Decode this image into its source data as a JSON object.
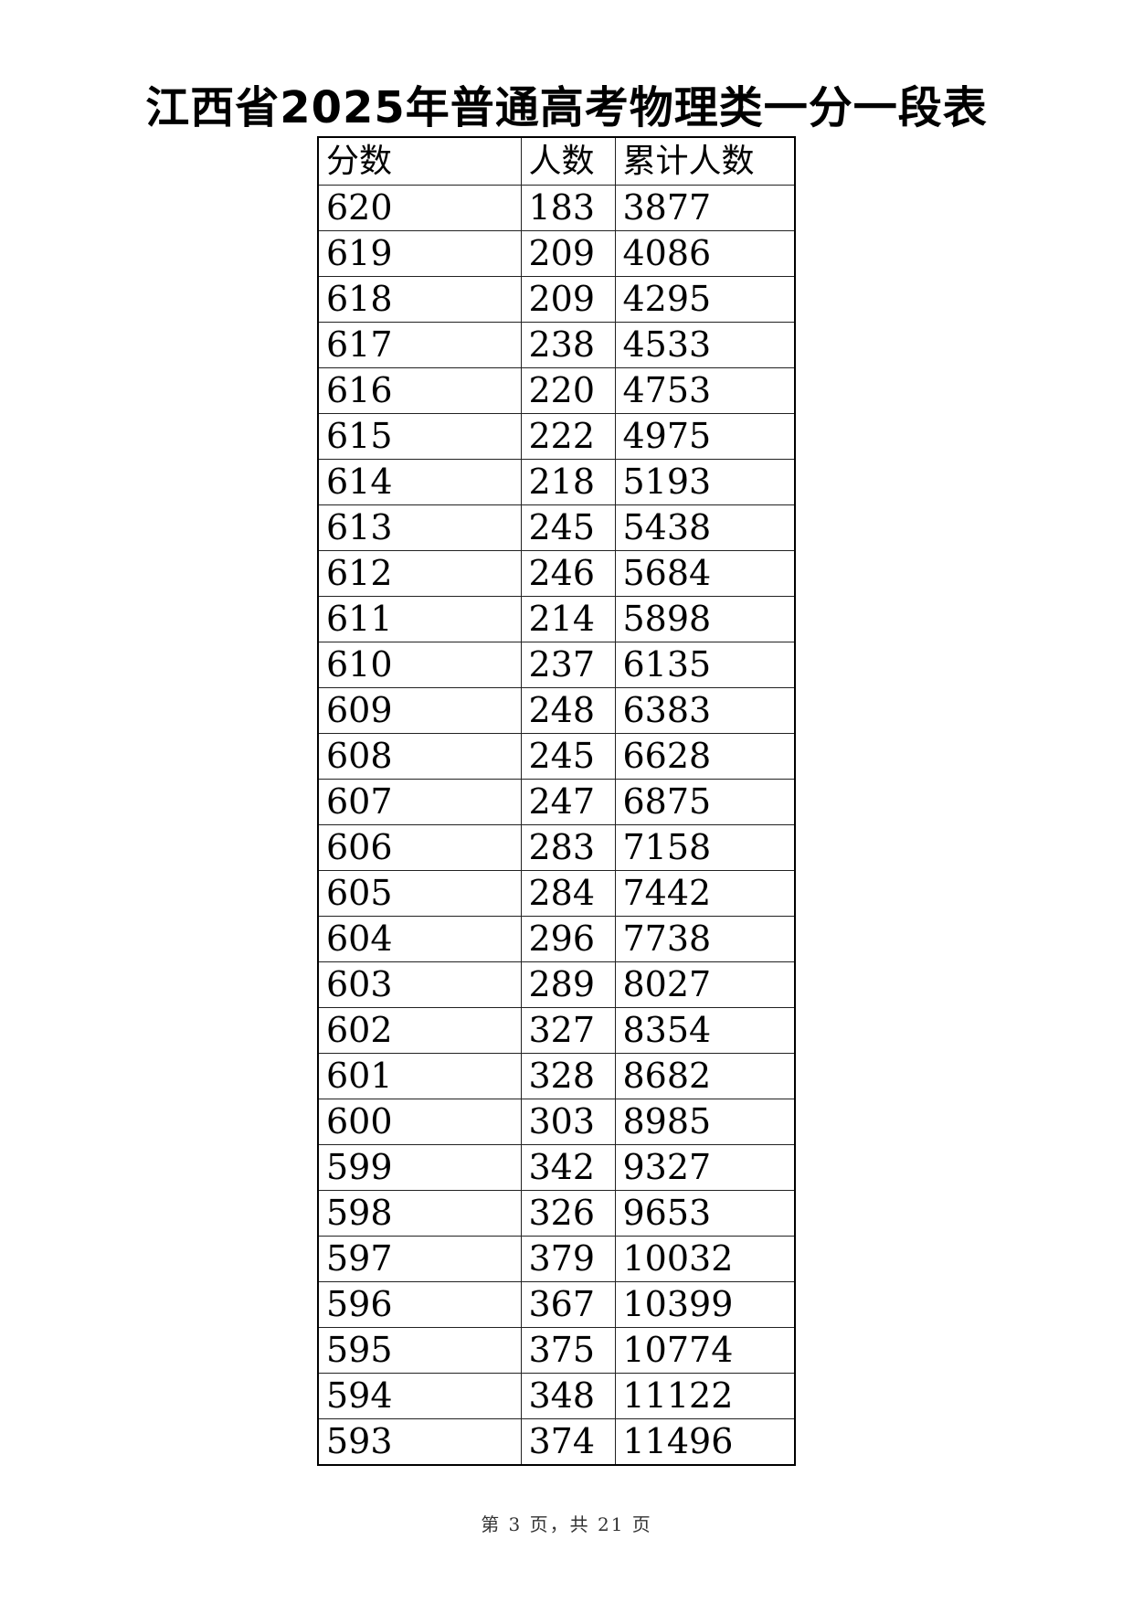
{
  "title": "江西省2025年普通高考物理类一分一段表",
  "table": {
    "headers": [
      "分数",
      "人数",
      "累计人数"
    ],
    "rows": [
      [
        "620",
        "183",
        "3877"
      ],
      [
        "619",
        "209",
        "4086"
      ],
      [
        "618",
        "209",
        "4295"
      ],
      [
        "617",
        "238",
        "4533"
      ],
      [
        "616",
        "220",
        "4753"
      ],
      [
        "615",
        "222",
        "4975"
      ],
      [
        "614",
        "218",
        "5193"
      ],
      [
        "613",
        "245",
        "5438"
      ],
      [
        "612",
        "246",
        "5684"
      ],
      [
        "611",
        "214",
        "5898"
      ],
      [
        "610",
        "237",
        "6135"
      ],
      [
        "609",
        "248",
        "6383"
      ],
      [
        "608",
        "245",
        "6628"
      ],
      [
        "607",
        "247",
        "6875"
      ],
      [
        "606",
        "283",
        "7158"
      ],
      [
        "605",
        "284",
        "7442"
      ],
      [
        "604",
        "296",
        "7738"
      ],
      [
        "603",
        "289",
        "8027"
      ],
      [
        "602",
        "327",
        "8354"
      ],
      [
        "601",
        "328",
        "8682"
      ],
      [
        "600",
        "303",
        "8985"
      ],
      [
        "599",
        "342",
        "9327"
      ],
      [
        "598",
        "326",
        "9653"
      ],
      [
        "597",
        "379",
        "10032"
      ],
      [
        "596",
        "367",
        "10399"
      ],
      [
        "595",
        "375",
        "10774"
      ],
      [
        "594",
        "348",
        "11122"
      ],
      [
        "593",
        "374",
        "11496"
      ]
    ]
  },
  "footer": "第 3 页，共 21 页"
}
